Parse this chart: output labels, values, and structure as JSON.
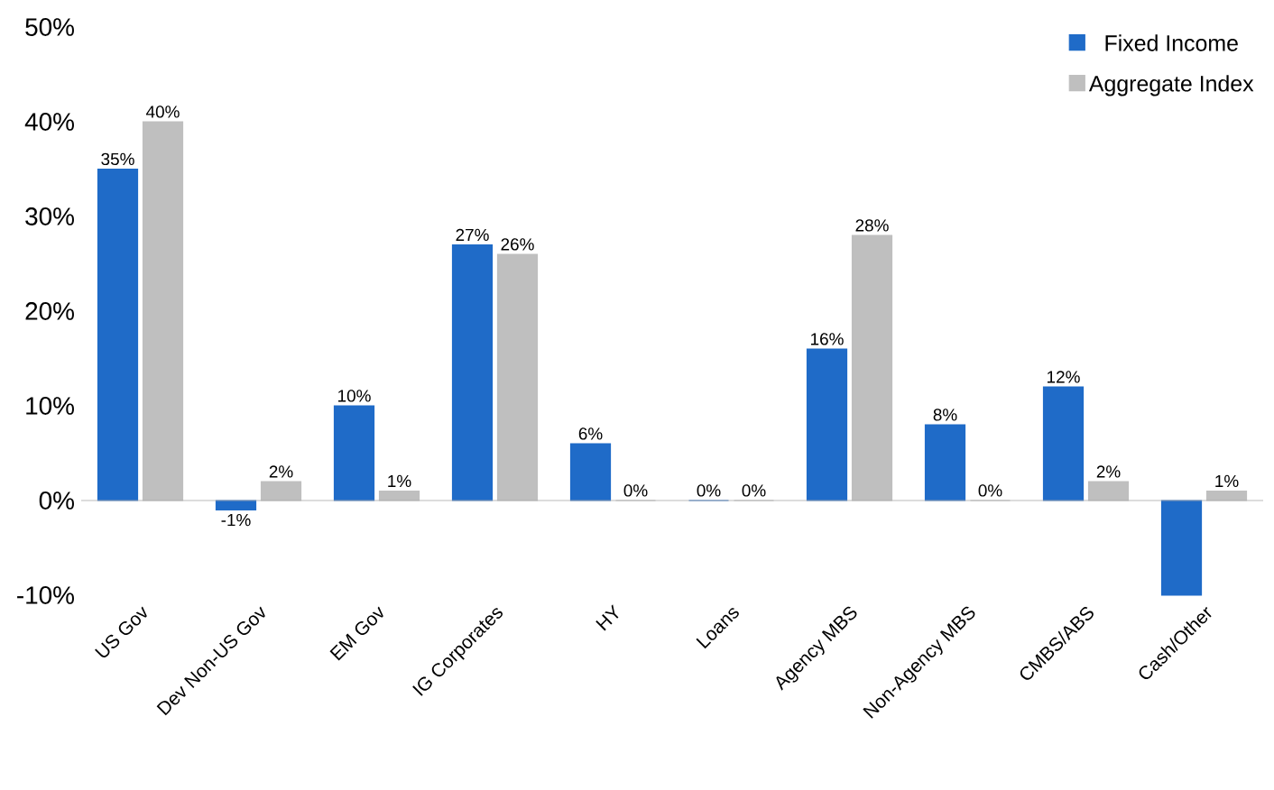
{
  "chart_data": {
    "type": "bar",
    "categories": [
      "US Gov",
      "Dev Non-US Gov",
      "EM Gov",
      "IG Corporates",
      "HY",
      "Loans",
      "Agency MBS",
      "Non-Agency MBS",
      "CMBS/ABS",
      "Cash/Other"
    ],
    "series": [
      {
        "name": "Fixed Income",
        "color": "#1f6bc8",
        "values": [
          35,
          -1,
          10,
          27,
          6,
          0,
          16,
          8,
          12,
          -10
        ],
        "value_labels": [
          "35%",
          "-1%",
          "10%",
          "27%",
          "6%",
          "0%",
          "16%",
          "8%",
          "12%",
          null
        ]
      },
      {
        "name": "Aggregate Index",
        "color": "#bfbfbf",
        "values": [
          40,
          2,
          1,
          26,
          0,
          0,
          28,
          0,
          2,
          1
        ],
        "value_labels": [
          "40%",
          "2%",
          "1%",
          "26%",
          "0%",
          "0%",
          "28%",
          "0%",
          "2%",
          "1%"
        ]
      }
    ],
    "ylim": [
      -10,
      50
    ],
    "yticks": [
      {
        "value": -10,
        "label": "-10%"
      },
      {
        "value": 0,
        "label": "0%"
      },
      {
        "value": 10,
        "label": "10%"
      },
      {
        "value": 20,
        "label": "20%"
      },
      {
        "value": 30,
        "label": "30%"
      },
      {
        "value": 40,
        "label": "40%"
      },
      {
        "value": 50,
        "label": "50%"
      }
    ],
    "legend": "top right"
  }
}
